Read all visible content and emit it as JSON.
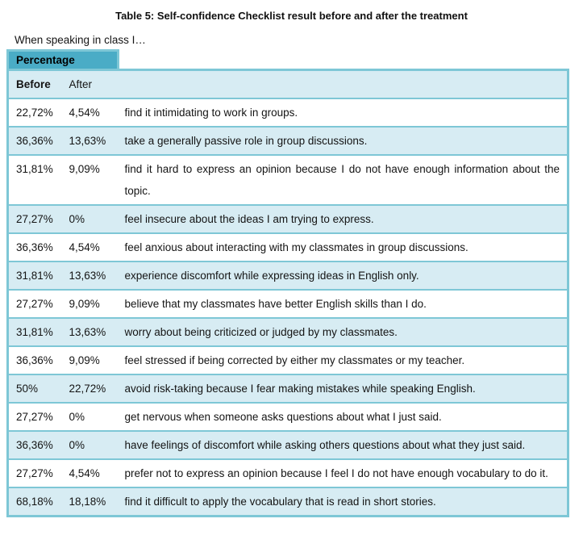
{
  "page": {
    "title": "Table 5: Self-confidence Checklist result before and after the treatment",
    "intro": "When speaking in class I…"
  },
  "table": {
    "tab_label": "Percentage",
    "header": {
      "before": "Before",
      "after": "After"
    },
    "rows": [
      {
        "before": "22,72%",
        "after": "4,54%",
        "statement": "find it intimidating to work in groups."
      },
      {
        "before": "36,36%",
        "after": "13,63%",
        "statement": "take a generally passive role in group discussions."
      },
      {
        "before": "31,81%",
        "after": "9,09%",
        "statement": "find it hard to express an opinion because I do not have enough information about the topic."
      },
      {
        "before": "27,27%",
        "after": "0%",
        "statement": "feel insecure about the ideas I am trying to express."
      },
      {
        "before": "36,36%",
        "after": "4,54%",
        "statement": "feel anxious about interacting with my classmates in group discussions."
      },
      {
        "before": "31,81%",
        "after": "13,63%",
        "statement": "experience discomfort while expressing ideas in English only."
      },
      {
        "before": "27,27%",
        "after": "9,09%",
        "statement": "believe that my classmates have better English skills than I do."
      },
      {
        "before": "31,81%",
        "after": "13,63%",
        "statement": "worry about being criticized or judged by my classmates."
      },
      {
        "before": "36,36%",
        "after": "9,09%",
        "statement": "feel stressed if being corrected by either my classmates or my teacher."
      },
      {
        "before": "50%",
        "after": "22,72%",
        "statement": "avoid risk-taking because I fear making mistakes while speaking English."
      },
      {
        "before": "27,27%",
        "after": "0%",
        "statement": "get nervous when someone asks questions about what I just said."
      },
      {
        "before": "36,36%",
        "after": "0%",
        "statement": "have feelings of discomfort while asking others questions about what they just said."
      },
      {
        "before": "27,27%",
        "after": "4,54%",
        "statement": "prefer not to express an opinion because I feel I do not have enough vocabulary to do it."
      },
      {
        "before": "68,18%",
        "after": "18,18%",
        "statement": "find it difficult to apply the vocabulary that is read in short stories."
      }
    ],
    "colors": {
      "tab_fill": "#4AACC6",
      "border": "#7EC7D6",
      "stripe": "#D7ECF3",
      "text": "#141414"
    }
  }
}
